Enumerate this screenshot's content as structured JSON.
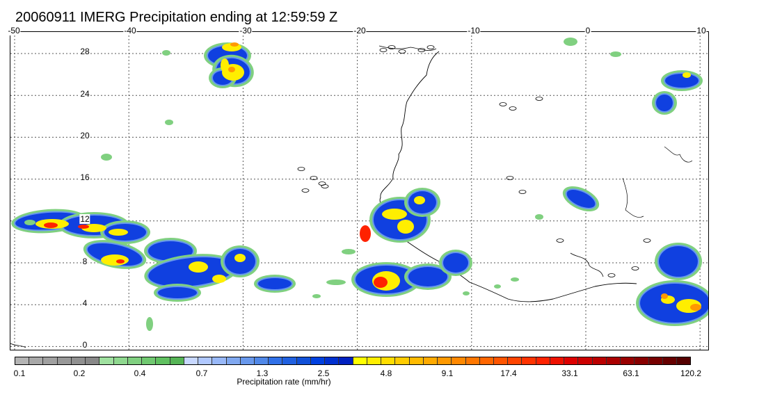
{
  "title": "20060911 IMERG Precipitation ending at 12:59:59 Z",
  "map": {
    "lon_labels": [
      "-50",
      "-40",
      "-30",
      "-20",
      "-10",
      "0",
      "10"
    ],
    "lat_labels": [
      "28",
      "24",
      "20",
      "16",
      "12",
      "8",
      "4",
      "0"
    ],
    "lon_range": [
      -50,
      10
    ],
    "lat_range": [
      -1,
      29
    ],
    "grid": "dotted"
  },
  "colorbar": {
    "title": "Precipitation rate (mm/hr)",
    "tick_labels": [
      "0.1",
      "0.2",
      "0.4",
      "0.7",
      "1.3",
      "2.5",
      "4.8",
      "9.1",
      "17.4",
      "33.1",
      "63.1",
      "120.2"
    ],
    "colors": [
      "#b4b4b4",
      "#a8a8a8",
      "#a0a0a0",
      "#989898",
      "#909090",
      "#888888",
      "#9fe09f",
      "#8fd88f",
      "#80d080",
      "#70c870",
      "#60c060",
      "#55b455",
      "#c8d8ff",
      "#b0c8ff",
      "#98b8f8",
      "#80a8f0",
      "#6898ec",
      "#5088e8",
      "#3070e8",
      "#2060e0",
      "#1050d8",
      "#0040e0",
      "#0030d0",
      "#0020c0",
      "#ffff00",
      "#ffee00",
      "#ffdd00",
      "#ffcc00",
      "#ffbb00",
      "#ffaa00",
      "#ff9900",
      "#ff8800",
      "#ff7700",
      "#ff6600",
      "#ff5500",
      "#ff4400",
      "#ff3300",
      "#ff2200",
      "#ee1100",
      "#dd0000",
      "#cc0000",
      "#bb0000",
      "#aa0000",
      "#990000",
      "#880000",
      "#770000",
      "#660000",
      "#550000"
    ]
  },
  "legend_colors": {
    "green": "#80d080",
    "light_blue": "#6898ec",
    "blue": "#1040e0",
    "yellow": "#ffee00",
    "orange": "#ff9900",
    "red": "#ff2200"
  }
}
